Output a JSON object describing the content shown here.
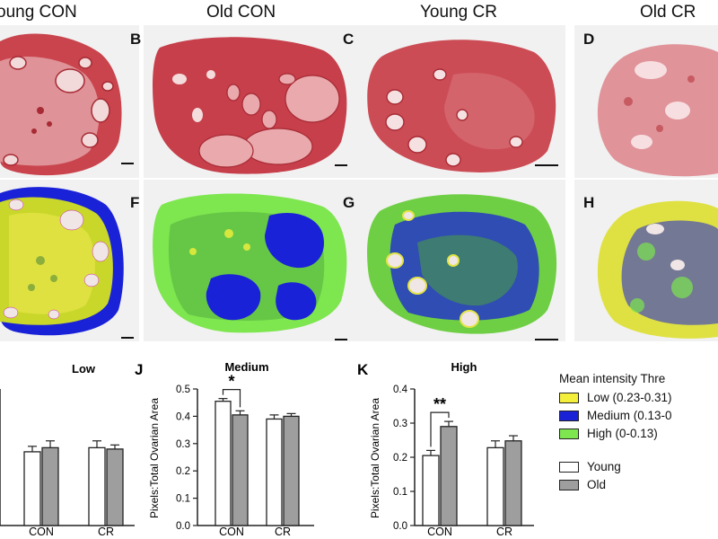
{
  "columns": [
    "oung CON",
    "Old CON",
    "Young CR",
    "Old CR"
  ],
  "panel_letters": {
    "top": [
      "B",
      "C",
      "D"
    ],
    "bottom": [
      "F",
      "G",
      "H"
    ],
    "charts": [
      "J",
      "K"
    ]
  },
  "colors": {
    "he_stain": "#c9444d",
    "he_stain_dark": "#a72a34",
    "he_light": "#efc3c5",
    "low": "#f4ef3b",
    "medium": "#1a22d8",
    "high": "#7ee64f",
    "young_bar": "#ffffff",
    "old_bar": "#9e9e9e"
  },
  "legend": {
    "title": "Mean intensity Thre",
    "intensity": [
      {
        "label": "Low (0.23-0.31)",
        "color": "#f4ef3b"
      },
      {
        "label": "Medium (0.13-0",
        "color": "#1a22d8"
      },
      {
        "label": "High (0-0.13)",
        "color": "#7ee64f"
      }
    ],
    "groups": [
      {
        "label": "Young",
        "color": "#ffffff"
      },
      {
        "label": "Old",
        "color": "#9e9e9e"
      }
    ]
  },
  "chart_data": [
    {
      "type": "bar",
      "title": "Low",
      "categories": [
        "CON",
        "CR"
      ],
      "series": [
        {
          "name": "Young",
          "values": [
            0.27,
            0.285
          ],
          "errors": [
            0.02,
            0.025
          ]
        },
        {
          "name": "Old",
          "values": [
            0.285,
            0.28
          ],
          "errors": [
            0.025,
            0.015
          ]
        }
      ],
      "ylim": [
        0,
        0.5
      ]
    },
    {
      "type": "bar",
      "title": "Medium",
      "ylabel": "Pixels:Total Ovarian Area",
      "categories": [
        "CON",
        "CR"
      ],
      "yticks": [
        "0.0",
        "0.1",
        "0.2",
        "0.3",
        "0.4",
        "0.5"
      ],
      "ylim": [
        0,
        0.5
      ],
      "series": [
        {
          "name": "Young",
          "values": [
            0.455,
            0.39
          ],
          "errors": [
            0.01,
            0.015
          ]
        },
        {
          "name": "Old",
          "values": [
            0.405,
            0.4
          ],
          "errors": [
            0.015,
            0.01
          ]
        }
      ],
      "annotations": [
        {
          "label": "*",
          "group": "CON"
        }
      ]
    },
    {
      "type": "bar",
      "title": "High",
      "ylabel": "Pixels:Total Ovarian Area",
      "categories": [
        "CON",
        "CR"
      ],
      "yticks": [
        "0.0",
        "0.1",
        "0.2",
        "0.3",
        "0.4"
      ],
      "ylim": [
        0,
        0.4
      ],
      "series": [
        {
          "name": "Young",
          "values": [
            0.205,
            0.228
          ],
          "errors": [
            0.015,
            0.02
          ]
        },
        {
          "name": "Old",
          "values": [
            0.29,
            0.248
          ],
          "errors": [
            0.015,
            0.015
          ]
        }
      ],
      "annotations": [
        {
          "label": "**",
          "group": "CON"
        }
      ]
    }
  ]
}
